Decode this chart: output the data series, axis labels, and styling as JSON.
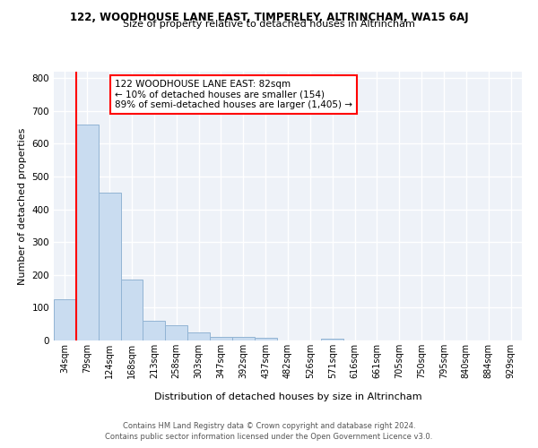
{
  "title": "122, WOODHOUSE LANE EAST, TIMPERLEY, ALTRINCHAM, WA15 6AJ",
  "subtitle": "Size of property relative to detached houses in Altrincham",
  "xlabel": "Distribution of detached houses by size in Altrincham",
  "ylabel": "Number of detached properties",
  "categories": [
    "34sqm",
    "79sqm",
    "124sqm",
    "168sqm",
    "213sqm",
    "258sqm",
    "303sqm",
    "347sqm",
    "392sqm",
    "437sqm",
    "482sqm",
    "526sqm",
    "571sqm",
    "616sqm",
    "661sqm",
    "705sqm",
    "750sqm",
    "795sqm",
    "840sqm",
    "884sqm",
    "929sqm"
  ],
  "bar_heights": [
    127,
    660,
    450,
    185,
    60,
    47,
    25,
    12,
    12,
    8,
    0,
    0,
    5,
    0,
    0,
    0,
    0,
    0,
    0,
    0,
    0
  ],
  "bar_color": "#c9dcf0",
  "bar_edge_color": "#92b4d4",
  "ylim": [
    0,
    820
  ],
  "yticks": [
    0,
    100,
    200,
    300,
    400,
    500,
    600,
    700,
    800
  ],
  "annotation_box_title": "122 WOODHOUSE LANE EAST: 82sqm",
  "annotation_line1": "← 10% of detached houses are smaller (154)",
  "annotation_line2": "89% of semi-detached houses are larger (1,405) →",
  "footer1": "Contains HM Land Registry data © Crown copyright and database right 2024.",
  "footer2": "Contains public sector information licensed under the Open Government Licence v3.0.",
  "background_color": "#eef2f8"
}
